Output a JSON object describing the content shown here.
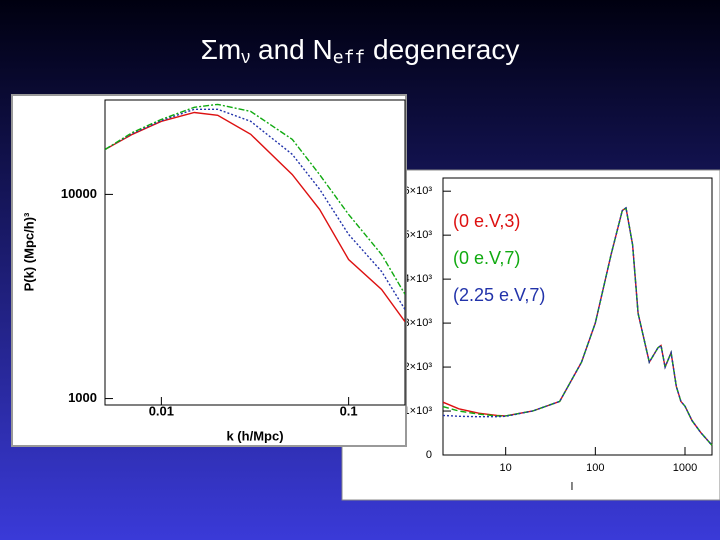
{
  "slide": {
    "title_parts": [
      "Σm",
      "ν",
      " and N",
      "eff",
      " degeneracy"
    ]
  },
  "chart_data": [
    {
      "type": "line",
      "xscale": "log",
      "yscale": "log",
      "xlabel": "k  (h/Mpc)",
      "ylabel": "P(k)   (Mpc/h)³",
      "x": [
        0.005,
        0.007,
        0.01,
        0.015,
        0.02,
        0.03,
        0.05,
        0.07,
        0.1,
        0.15,
        0.2
      ],
      "xlim": [
        0.005,
        0.2
      ],
      "xticks": [
        0.01,
        0.1
      ],
      "ylim": [
        930,
        29000
      ],
      "yticks": [
        1000,
        10000
      ],
      "series": [
        {
          "color": "#dd1111",
          "dash": "solid",
          "values": [
            16600,
            19700,
            22800,
            25200,
            24400,
            19700,
            12500,
            8440,
            4800,
            3420,
            2380
          ]
        },
        {
          "color": "#2233aa",
          "dash": "dotted",
          "values": [
            16600,
            19900,
            23000,
            26100,
            26100,
            22800,
            15700,
            10600,
            6370,
            4190,
            2730
          ]
        },
        {
          "color": "#11aa11",
          "dash": "dashdot",
          "values": [
            16600,
            20100,
            23300,
            26700,
            27600,
            25500,
            18600,
            12500,
            7980,
            5080,
            3240
          ]
        }
      ]
    },
    {
      "type": "line",
      "xscale": "log",
      "yscale": "linear",
      "xlabel": "l",
      "legend": "upper left",
      "x": [
        2,
        3,
        5,
        8,
        10,
        20,
        40,
        70,
        100,
        150,
        200,
        220,
        260,
        300,
        400,
        500,
        540,
        600,
        700,
        800,
        900,
        1000,
        1200,
        1500,
        2000
      ],
      "xlim": [
        2,
        2000
      ],
      "xticks": [
        10,
        100,
        1000
      ],
      "ylim": [
        0,
        6300
      ],
      "yticks": [
        0,
        {
          "value": 1000,
          "label": "1×10³"
        },
        {
          "value": 2000,
          "label": "2×10³"
        },
        {
          "value": 3000,
          "label": "3×10³"
        },
        {
          "value": 4000,
          "label": "4×10³"
        },
        {
          "value": 5000,
          "label": "5×10³"
        },
        {
          "value": 6000,
          "label": "6×10³"
        }
      ],
      "series": [
        {
          "name": "(0 e.V,3)",
          "color": "#dd1111",
          "dash": "solid",
          "values": [
            1200,
            1050,
            950,
            900,
            890,
            1000,
            1220,
            2110,
            3000,
            4560,
            5560,
            5620,
            4780,
            3220,
            2110,
            2440,
            2490,
            2000,
            2330,
            1560,
            1220,
            1110,
            780,
            510,
            220
          ]
        },
        {
          "name": "(0 e.V,7)",
          "color": "#11aa11",
          "dash": "dashed",
          "values": [
            1100,
            1000,
            930,
            890,
            890,
            1000,
            1220,
            2110,
            3000,
            4560,
            5560,
            5620,
            4780,
            3220,
            2110,
            2440,
            2490,
            2000,
            2330,
            1560,
            1220,
            1110,
            780,
            510,
            220
          ]
        },
        {
          "name": "(2.25 e.V,7)",
          "color": "#2233aa",
          "dash": "dotted",
          "values": [
            900,
            880,
            870,
            870,
            880,
            1000,
            1220,
            2110,
            3000,
            4560,
            5560,
            5620,
            4780,
            3220,
            2110,
            2440,
            2490,
            2000,
            2330,
            1560,
            1220,
            1110,
            780,
            510,
            220
          ]
        }
      ]
    }
  ]
}
